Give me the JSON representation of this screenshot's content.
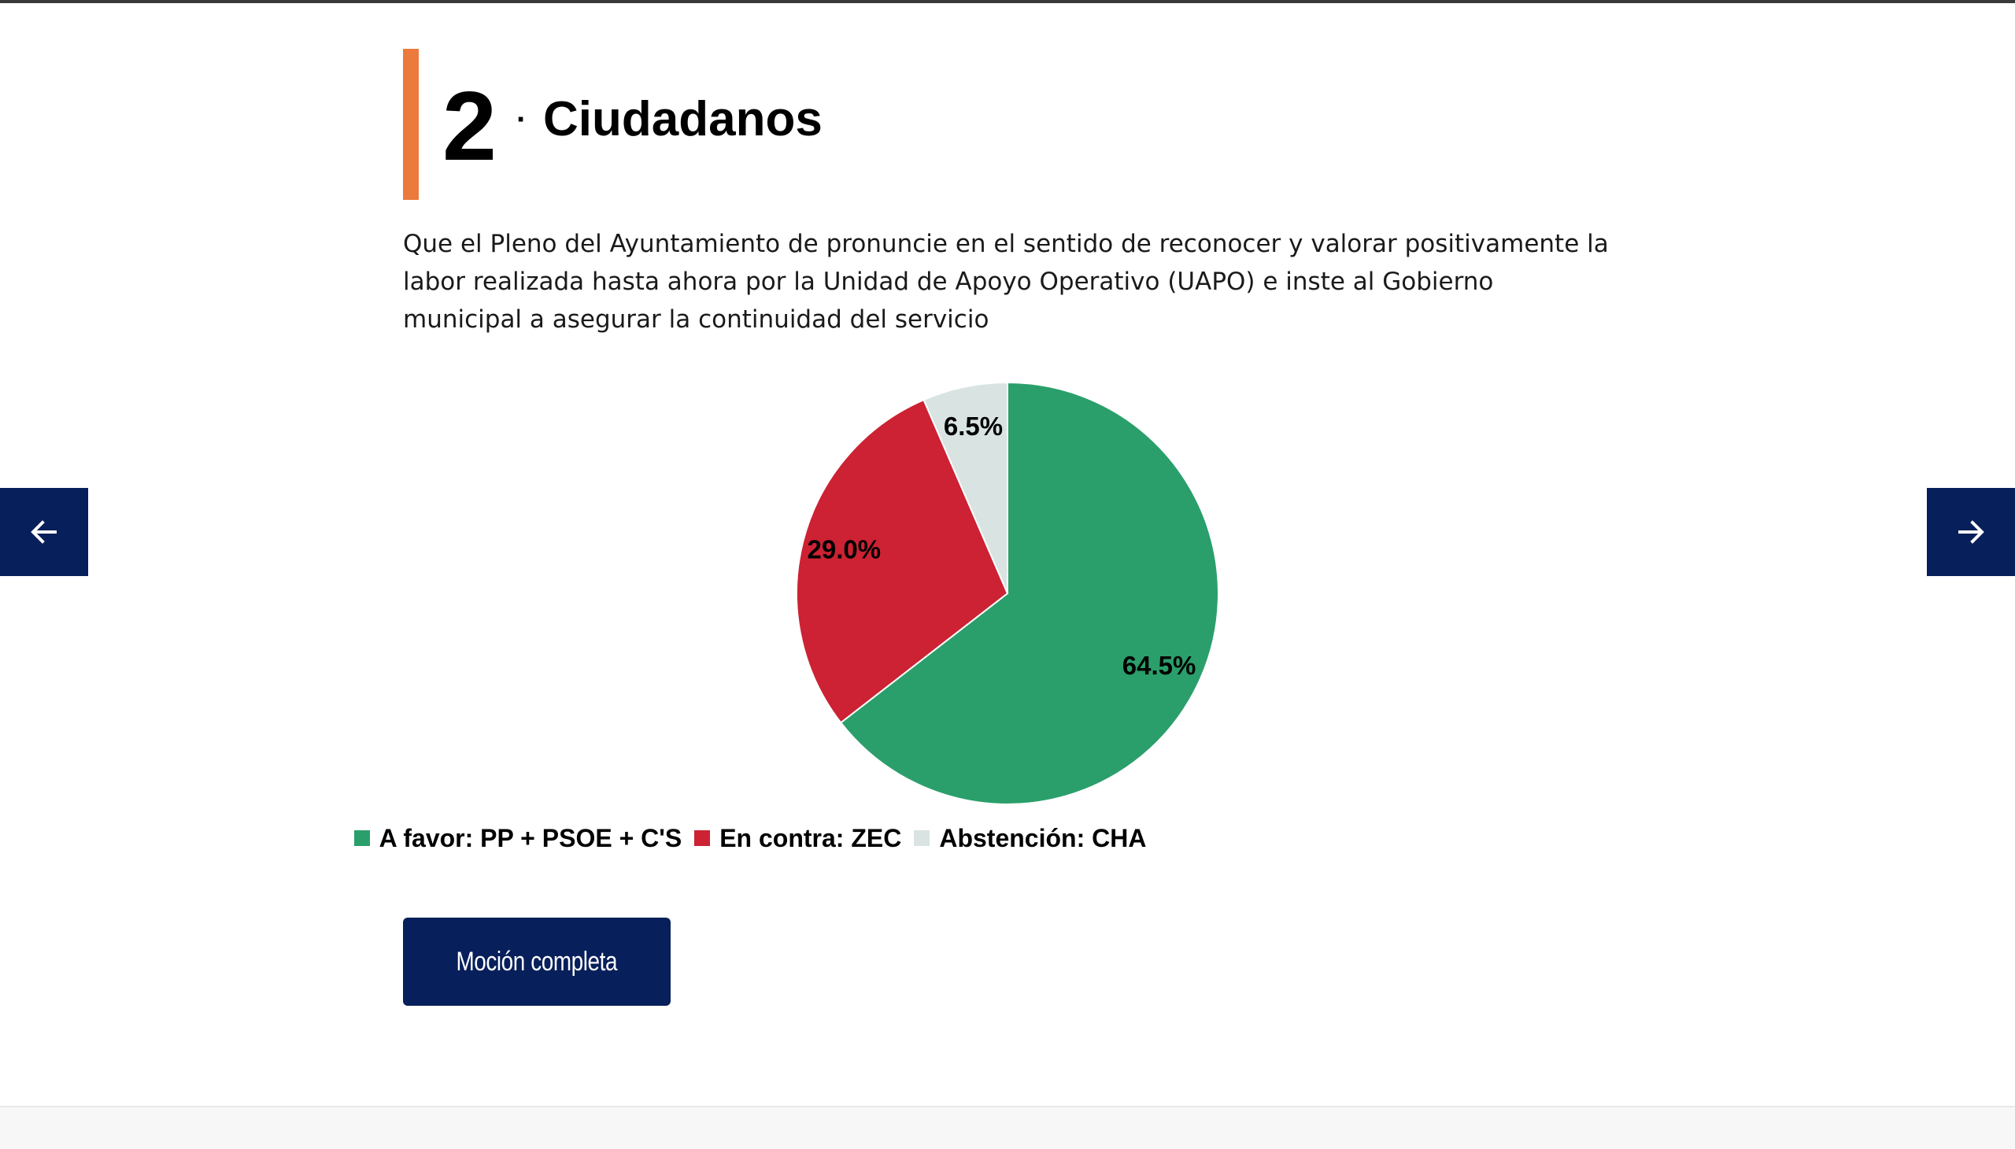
{
  "motion": {
    "number": "2",
    "separator": "·",
    "party": "Ciudadanos",
    "description": "Que el Pleno del Ayuntamiento de pronuncie en el sentido de reconocer y valorar positivamente la labor realizada hasta ahora por la Unidad de Apoyo Operativo (UAPO) e inste al Gobierno municipal a asegurar la continuidad del servicio"
  },
  "chart_data": {
    "type": "pie",
    "categories": [
      "A favor: PP + PSOE + C'S",
      "En contra: ZEC",
      "Abstención: CHA"
    ],
    "values": [
      64.5,
      29.0,
      6.5
    ],
    "labels": [
      "64.5%",
      "29.0%",
      "6.5%"
    ],
    "colors": [
      "#2a9f6b",
      "#cc2233",
      "#d8e3e2"
    ],
    "legend_position": "bottom"
  },
  "navigation": {
    "prev_icon": "arrow-left-icon",
    "next_icon": "arrow-right-icon"
  },
  "actions": {
    "full_motion_label": "Moción completa"
  },
  "colors": {
    "accent": "#ec7a3c",
    "navy": "#071f5a"
  }
}
